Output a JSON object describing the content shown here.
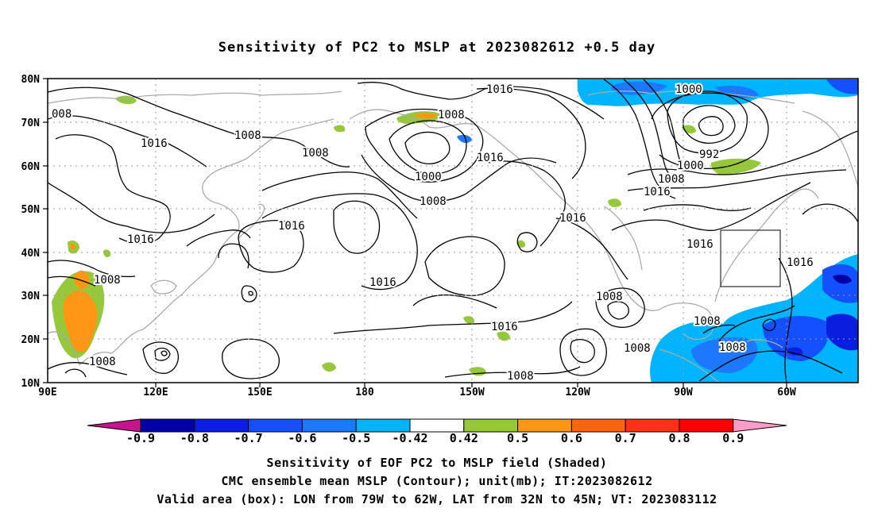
{
  "title": "Sensitivity of PC2 to MSLP at 2023082612 +0.5 day",
  "axes": {
    "lon_ticks": [
      "90E",
      "120E",
      "150E",
      "180",
      "150W",
      "120W",
      "90W",
      "60W"
    ],
    "lat_ticks": [
      "80N",
      "70N",
      "60N",
      "50N",
      "40N",
      "30N",
      "20N",
      "10N"
    ]
  },
  "colorbar": {
    "labels": [
      "-0.9",
      "-0.8",
      "-0.7",
      "-0.6",
      "-0.5",
      "-0.42",
      "0.42",
      "0.5",
      "0.6",
      "0.7",
      "0.8",
      "0.9"
    ],
    "colors": [
      "#0000a8",
      "#0a1ee0",
      "#1450ff",
      "#1e78ff",
      "#00b4ff",
      "#ffffff",
      "#96c83c",
      "#ff9614",
      "#ff6414",
      "#ff3214",
      "#ff0000"
    ],
    "low_end_color": "#c8148c",
    "high_end_color": "#ff9bc8"
  },
  "contour_labels": [
    "1016",
    "1000",
    "992",
    "1000",
    "1008",
    "1016",
    "1016",
    "1016",
    "1016",
    "1016",
    "1008",
    "1008",
    "1008",
    "1016",
    "1008",
    "1008",
    "1000",
    "1008",
    "1008",
    "1016",
    "1016",
    "1016",
    "1008",
    "1008",
    "1008",
    "1008",
    "008"
  ],
  "valid_box": {
    "lon": [
      "79W",
      "62W"
    ],
    "lat": [
      "32N",
      "45N"
    ]
  },
  "captions": {
    "line1": "Sensitivity of EOF PC2 to MSLP field (Shaded)",
    "line2": "CMC ensemble mean MSLP (Contour); unit(mb); IT:2023082612",
    "line3": "Valid area (box): LON from 79W to 62W, LAT from 32N to 45N; VT: 2023083112"
  }
}
